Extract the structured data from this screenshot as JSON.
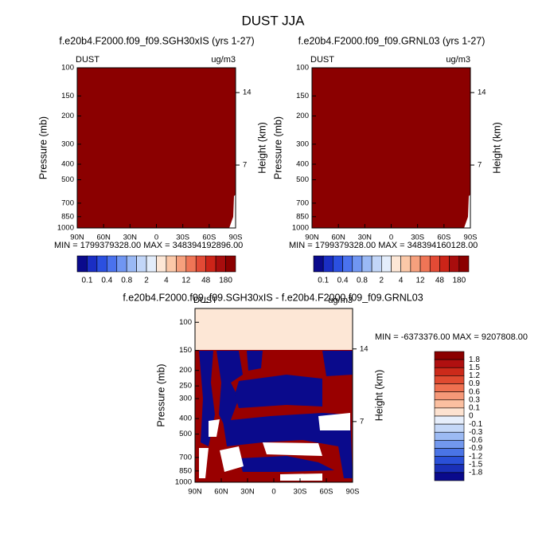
{
  "title": "DUST JJA",
  "panels": [
    {
      "title": "f.e20b4.F2000.f09_f09.SGH30xIS (yrs 1-27)",
      "variable": "DUST",
      "units": "ug/m3",
      "ylabel": "Pressure (mb)",
      "y2label": "Height (km)",
      "stats": "MIN = 1799379328.00   MAX = 348394192896.00",
      "xlim": [
        90,
        -90
      ],
      "xticks": [
        {
          "value": 90,
          "label": "90N"
        },
        {
          "value": 60,
          "label": "60N"
        },
        {
          "value": 30,
          "label": "30N"
        },
        0,
        {
          "value": -30,
          "label": "30S"
        },
        {
          "value": -60,
          "label": "60S"
        },
        {
          "value": -90,
          "label": "90S"
        }
      ],
      "ylim": [
        1000,
        100
      ],
      "log_y": true,
      "yticks": [
        100,
        150,
        200,
        300,
        400,
        500,
        700,
        850,
        1000
      ],
      "y2lim": [
        0.92,
        16.4
      ],
      "y2ticks": [
        14,
        7
      ]
    },
    {
      "title": "f.e20b4.F2000.f09_f09.GRNL03 (yrs 1-27)",
      "variable": "DUST",
      "units": "ug/m3",
      "ylabel": "Pressure (mb)",
      "y2label": "Height (km)",
      "stats": "MIN = 1799379328.00   MAX = 348394160128.00",
      "xlim": [
        90,
        -90
      ],
      "xticks": [
        {
          "value": 90,
          "label": "90N"
        },
        {
          "value": 60,
          "label": "60N"
        },
        {
          "value": 30,
          "label": "30N"
        },
        0,
        {
          "value": -30,
          "label": "30S"
        },
        {
          "value": -60,
          "label": "60S"
        },
        {
          "value": -90,
          "label": "90S"
        }
      ],
      "ylim": [
        1000,
        100
      ],
      "log_y": true,
      "yticks": [
        100,
        150,
        200,
        300,
        400,
        500,
        700,
        850,
        1000
      ],
      "y2lim": [
        0.92,
        16.4
      ],
      "y2ticks": [
        14,
        7
      ]
    },
    {
      "title": "f.e20b4.F2000.f09_f09.SGH30xIS - f.e20b4.F2000.f09_f09.GRNL03",
      "variable": "DUST",
      "units": "ug/m3",
      "ylabel": "Pressure (mb)",
      "y2label": "Height (km)",
      "stats": "MIN = -6373376.00   MAX = 9207808.00",
      "xlim": [
        90,
        -90
      ],
      "xticks": [
        {
          "value": 90,
          "label": "90N"
        },
        {
          "value": 60,
          "label": "60N"
        },
        {
          "value": 30,
          "label": "30N"
        },
        0,
        {
          "value": -30,
          "label": "30S"
        },
        {
          "value": -60,
          "label": "60S"
        },
        {
          "value": -90,
          "label": "90S"
        }
      ],
      "ylim": [
        1000,
        82
      ],
      "log_y": true,
      "yticks": [
        100,
        150,
        200,
        250,
        300,
        400,
        500,
        700,
        850,
        1000
      ],
      "y2lim": [
        1.15,
        17.9
      ],
      "y2ticks": [
        14,
        7
      ]
    }
  ],
  "colorbars": [
    {
      "labels": [
        0.1,
        0.4,
        0.8,
        2,
        4,
        12,
        48,
        180
      ],
      "colors": [
        "#0a0a8c",
        "#1a2ec4",
        "#2b50e0",
        "#4a72ee",
        "#7096f2",
        "#9ab9f5",
        "#c2d6f8",
        "#e3edfb",
        "#fde7d6",
        "#fbc8a8",
        "#f6a07d",
        "#ef7556",
        "#e24a35",
        "#cc2418",
        "#a80d0d",
        "#8b0000"
      ]
    },
    {
      "labels": [
        0.1,
        0.4,
        0.8,
        2,
        4,
        12,
        48,
        180
      ],
      "colors": [
        "#0a0a8c",
        "#1a2ec4",
        "#2b50e0",
        "#4a72ee",
        "#7096f2",
        "#9ab9f5",
        "#c2d6f8",
        "#e3edfb",
        "#fde7d6",
        "#fbc8a8",
        "#f6a07d",
        "#ef7556",
        "#e24a35",
        "#cc2418",
        "#a80d0d",
        "#8b0000"
      ]
    },
    {
      "labels": [
        1.8,
        1.5,
        1.2,
        0.9,
        0.6,
        0.3,
        0.1,
        0,
        -0.1,
        -0.3,
        -0.6,
        -0.9,
        -1.2,
        -1.5,
        -1.8
      ],
      "colors": [
        "#8b0000",
        "#b01010",
        "#cc2a1a",
        "#e04a30",
        "#ef7050",
        "#f59878",
        "#fbbfa0",
        "#fde2d0",
        "#e6eefb",
        "#c4d7f7",
        "#9cbaf3",
        "#7298ee",
        "#4a74e6",
        "#2a50d8",
        "#1a30b8",
        "#0a0a8c"
      ]
    }
  ]
}
